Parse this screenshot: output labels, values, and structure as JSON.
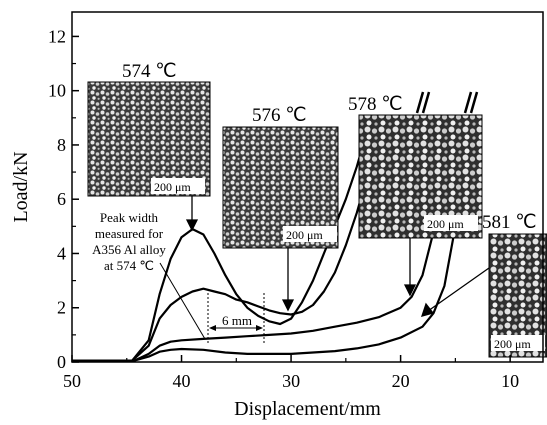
{
  "chart_data": {
    "type": "line",
    "xlabel": "Displacement/mm",
    "ylabel": "Load/kN",
    "xlim": [
      50,
      7
    ],
    "ylim": [
      0,
      12.9
    ],
    "xticks": [
      "50",
      "40",
      "30",
      "20",
      "10"
    ],
    "yticks": [
      "0",
      "2",
      "4",
      "6",
      "8",
      "10",
      "12"
    ],
    "series": [
      {
        "name": "574 ℃",
        "x": [
          50,
          44.5,
          43,
          42,
          41,
          40,
          39,
          38,
          37,
          36,
          35,
          34,
          33,
          32,
          31,
          30,
          29,
          28,
          27,
          26,
          25,
          24,
          23
        ],
        "y": [
          0.05,
          0.05,
          0.8,
          2.5,
          3.8,
          4.6,
          4.9,
          4.7,
          4.0,
          3.2,
          2.5,
          2.0,
          1.7,
          1.5,
          1.4,
          1.6,
          2.2,
          3.0,
          4.0,
          5.0,
          6.0,
          7.2,
          8.6
        ]
      },
      {
        "name": "576 ℃",
        "x": [
          50,
          44.5,
          43,
          42,
          41,
          40,
          39,
          38,
          37,
          36,
          35,
          34,
          33,
          32,
          31,
          30,
          29,
          28,
          27,
          26,
          25,
          24,
          23,
          22
        ],
        "y": [
          0.05,
          0.05,
          0.6,
          1.6,
          2.1,
          2.4,
          2.6,
          2.7,
          2.6,
          2.5,
          2.3,
          2.2,
          2.05,
          1.9,
          1.8,
          1.75,
          1.85,
          2.1,
          2.6,
          3.3,
          4.3,
          5.5,
          6.9,
          8.4
        ]
      },
      {
        "name": "578 ℃",
        "x": [
          50,
          44.3,
          43,
          42,
          41,
          40,
          38,
          36,
          34,
          32,
          30,
          28,
          26,
          24,
          22,
          20,
          19,
          18,
          17,
          16.5,
          16,
          15.5
        ],
        "y": [
          0.05,
          0.05,
          0.3,
          0.6,
          0.75,
          0.8,
          0.85,
          0.9,
          0.95,
          1.0,
          1.05,
          1.15,
          1.3,
          1.45,
          1.65,
          2.0,
          2.4,
          3.2,
          4.8,
          6.0,
          7.3,
          8.4
        ]
      },
      {
        "name": "581 ℃",
        "x": [
          50,
          44.3,
          43,
          42,
          41,
          40,
          38,
          36,
          34,
          32,
          30,
          28,
          26,
          24,
          22,
          20,
          18,
          17,
          16,
          15,
          14.5
        ],
        "y": [
          0.05,
          0.05,
          0.2,
          0.38,
          0.45,
          0.48,
          0.45,
          0.35,
          0.3,
          0.3,
          0.3,
          0.35,
          0.4,
          0.5,
          0.65,
          0.9,
          1.3,
          1.8,
          2.8,
          5.0,
          7.0
        ]
      }
    ],
    "annotations": {
      "peak_text_lines": [
        "Peak width",
        "measured for",
        "A356 Al alloy",
        "at 574 ℃"
      ],
      "width_label": "6 mm",
      "scale_bar_label": "200 μm",
      "temperature_labels": [
        "574 ℃",
        "576 ℃",
        "578 ℃",
        "581 ℃"
      ]
    },
    "grid": false,
    "legend": "none"
  }
}
